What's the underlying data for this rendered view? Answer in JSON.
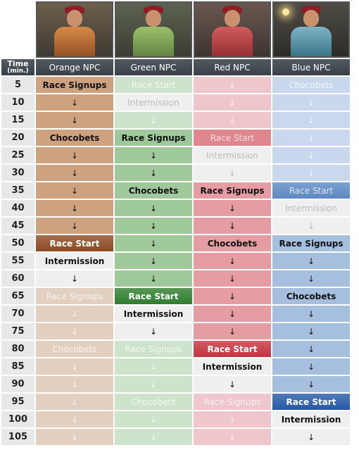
{
  "header": {
    "time_label": "Time",
    "time_unit": "(min.)",
    "columns": [
      {
        "name": "Orange NPC",
        "accent": "#c87a3c"
      },
      {
        "name": "Green NPC",
        "accent": "#5aa05a"
      },
      {
        "name": "Red NPC",
        "accent": "#d85a64"
      },
      {
        "name": "Blue NPC",
        "accent": "#6a92c8"
      }
    ]
  },
  "colors": {
    "orange": {
      "dark": "#cfa27f",
      "light": "#e2cfbf",
      "start": "#8b4a22",
      "white": "#efefef"
    },
    "green": {
      "dark": "#9fc99b",
      "light": "#cde3cb",
      "start": "#2e7d2e",
      "white": "#efefef"
    },
    "red": {
      "dark": "#e59ca3",
      "light": "#efc6cb",
      "start": "#c2353e",
      "white": "#efefef"
    },
    "blue": {
      "dark": "#a7bfdf",
      "light": "#c9d8ec",
      "start": "#2658a8",
      "white": "#efefef"
    }
  },
  "rows": [
    {
      "time": "5",
      "cells": [
        {
          "text": "Race Signups",
          "style": "dark",
          "bold": true
        },
        {
          "text": "Race Start",
          "style": "light",
          "faint": true
        },
        {
          "text": "↓",
          "style": "light",
          "faint": true
        },
        {
          "text": "Chocobets",
          "style": "light",
          "faint": true
        }
      ]
    },
    {
      "time": "10",
      "cells": [
        {
          "text": "↓",
          "style": "dark"
        },
        {
          "text": "Intermission",
          "style": "white",
          "faint": true
        },
        {
          "text": "↓",
          "style": "light",
          "faint": true
        },
        {
          "text": "↓",
          "style": "light",
          "faint": true
        }
      ]
    },
    {
      "time": "15",
      "cells": [
        {
          "text": "↓",
          "style": "dark"
        },
        {
          "text": "↓",
          "style": "light",
          "faint": true
        },
        {
          "text": "↓",
          "style": "light",
          "faint": true
        },
        {
          "text": "↓",
          "style": "light",
          "faint": true
        }
      ]
    },
    {
      "time": "20",
      "cells": [
        {
          "text": "Chocobets",
          "style": "dark",
          "bold": true
        },
        {
          "text": "Race Signups",
          "style": "dark",
          "bold": true
        },
        {
          "text": "Race Start",
          "style": "redfaint",
          "faint": true
        },
        {
          "text": "↓",
          "style": "light",
          "faint": true
        }
      ]
    },
    {
      "time": "25",
      "cells": [
        {
          "text": "↓",
          "style": "dark"
        },
        {
          "text": "↓",
          "style": "dark"
        },
        {
          "text": "Intermission",
          "style": "white",
          "faint": true
        },
        {
          "text": "↓",
          "style": "light",
          "faint": true
        }
      ]
    },
    {
      "time": "30",
      "cells": [
        {
          "text": "↓",
          "style": "dark"
        },
        {
          "text": "↓",
          "style": "dark"
        },
        {
          "text": "↓",
          "style": "white",
          "faint": true
        },
        {
          "text": "↓",
          "style": "light",
          "faint": true
        }
      ]
    },
    {
      "time": "35",
      "cells": [
        {
          "text": "↓",
          "style": "dark"
        },
        {
          "text": "Chocobets",
          "style": "dark",
          "bold": true
        },
        {
          "text": "Race Signups",
          "style": "dark",
          "bold": true
        },
        {
          "text": "Race Start",
          "style": "bluefaint",
          "faint": true
        }
      ]
    },
    {
      "time": "40",
      "cells": [
        {
          "text": "↓",
          "style": "dark"
        },
        {
          "text": "↓",
          "style": "dark"
        },
        {
          "text": "↓",
          "style": "dark"
        },
        {
          "text": "Intermission",
          "style": "white",
          "faint": true
        }
      ]
    },
    {
      "time": "45",
      "cells": [
        {
          "text": "↓",
          "style": "dark"
        },
        {
          "text": "↓",
          "style": "dark"
        },
        {
          "text": "↓",
          "style": "dark"
        },
        {
          "text": "↓",
          "style": "white",
          "faint": true
        }
      ]
    },
    {
      "time": "50",
      "cells": [
        {
          "text": "Race Start",
          "style": "start",
          "bold": true
        },
        {
          "text": "↓",
          "style": "dark"
        },
        {
          "text": "Chocobets",
          "style": "dark",
          "bold": true
        },
        {
          "text": "Race Signups",
          "style": "dark",
          "bold": true
        }
      ]
    },
    {
      "time": "55",
      "cells": [
        {
          "text": "Intermission",
          "style": "white",
          "bold": true
        },
        {
          "text": "↓",
          "style": "dark"
        },
        {
          "text": "↓",
          "style": "dark"
        },
        {
          "text": "↓",
          "style": "dark"
        }
      ]
    },
    {
      "time": "60",
      "cells": [
        {
          "text": "↓",
          "style": "white"
        },
        {
          "text": "↓",
          "style": "dark"
        },
        {
          "text": "↓",
          "style": "dark"
        },
        {
          "text": "↓",
          "style": "dark"
        }
      ]
    },
    {
      "time": "65",
      "cells": [
        {
          "text": "Race Signups",
          "style": "light",
          "faint": true
        },
        {
          "text": "Race Start",
          "style": "start",
          "bold": true
        },
        {
          "text": "↓",
          "style": "dark"
        },
        {
          "text": "Chocobets",
          "style": "dark",
          "bold": true
        }
      ]
    },
    {
      "time": "70",
      "cells": [
        {
          "text": "↓",
          "style": "light",
          "faint": true
        },
        {
          "text": "Intermission",
          "style": "white",
          "bold": true
        },
        {
          "text": "↓",
          "style": "dark"
        },
        {
          "text": "↓",
          "style": "dark"
        }
      ]
    },
    {
      "time": "75",
      "cells": [
        {
          "text": "↓",
          "style": "light",
          "faint": true
        },
        {
          "text": "↓",
          "style": "white"
        },
        {
          "text": "↓",
          "style": "dark"
        },
        {
          "text": "↓",
          "style": "dark"
        }
      ]
    },
    {
      "time": "80",
      "cells": [
        {
          "text": "Chocobets",
          "style": "light",
          "faint": true
        },
        {
          "text": "Race Signups",
          "style": "light",
          "faint": true
        },
        {
          "text": "Race Start",
          "style": "start",
          "bold": true
        },
        {
          "text": "↓",
          "style": "dark"
        }
      ]
    },
    {
      "time": "85",
      "cells": [
        {
          "text": "↓",
          "style": "light",
          "faint": true
        },
        {
          "text": "↓",
          "style": "light",
          "faint": true
        },
        {
          "text": "Intermission",
          "style": "white",
          "bold": true
        },
        {
          "text": "↓",
          "style": "dark"
        }
      ]
    },
    {
      "time": "90",
      "cells": [
        {
          "text": "↓",
          "style": "light",
          "faint": true
        },
        {
          "text": "↓",
          "style": "light",
          "faint": true
        },
        {
          "text": "↓",
          "style": "white"
        },
        {
          "text": "↓",
          "style": "dark"
        }
      ]
    },
    {
      "time": "95",
      "cells": [
        {
          "text": "↓",
          "style": "light",
          "faint": true
        },
        {
          "text": "Chocobets",
          "style": "light",
          "faint": true
        },
        {
          "text": "Race Signups",
          "style": "light",
          "faint": true
        },
        {
          "text": "Race Start",
          "style": "start",
          "bold": true
        }
      ]
    },
    {
      "time": "100",
      "cells": [
        {
          "text": "↓",
          "style": "light",
          "faint": true
        },
        {
          "text": "↓",
          "style": "light",
          "faint": true
        },
        {
          "text": "↓",
          "style": "light",
          "faint": true
        },
        {
          "text": "Intermission",
          "style": "white",
          "bold": true
        }
      ]
    },
    {
      "time": "105",
      "cells": [
        {
          "text": "↓",
          "style": "light",
          "faint": true
        },
        {
          "text": "↓",
          "style": "light",
          "faint": true
        },
        {
          "text": "↓",
          "style": "light",
          "faint": true
        },
        {
          "text": "↓",
          "style": "white"
        }
      ]
    }
  ]
}
